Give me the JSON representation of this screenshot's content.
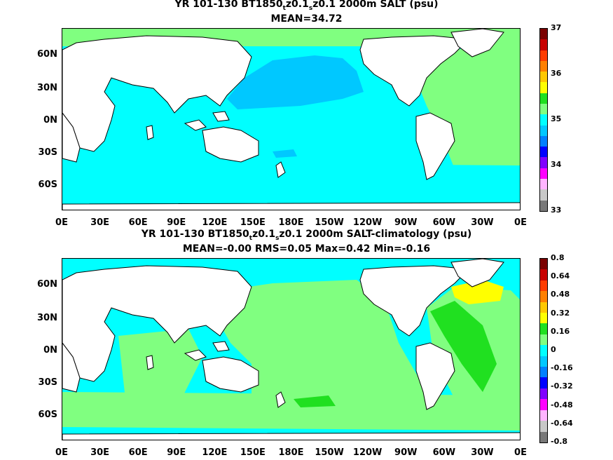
{
  "top": {
    "title_pre": "YR 101-130 BT1850",
    "title_sub1": "t",
    "title_mid": "z0.1",
    "title_sub2": "s",
    "title_post": "z0.1 2000m SALT (psu)",
    "stats": "MEAN=34.72",
    "colorbar": {
      "colors": [
        "#7a0000",
        "#c80000",
        "#ff3c00",
        "#ff8000",
        "#ffc800",
        "#ffff00",
        "#20e020",
        "#80ff80",
        "#00ffff",
        "#00c8ff",
        "#0080ff",
        "#0000ff",
        "#8000ff",
        "#ff00ff",
        "#ffb4ff",
        "#c8c8c8",
        "#787878"
      ],
      "labels": [
        "37",
        "36",
        "35",
        "34",
        "33"
      ]
    }
  },
  "bottom": {
    "title_pre": "YR 101-130 BT1850",
    "title_sub1": "t",
    "title_mid": "z0.1",
    "title_sub2": "s",
    "title_post": "z0.1 2000m SALT-climatology (psu)",
    "stats": "MEAN=-0.00   RMS=0.05   Max=0.42   Min=-0.16",
    "colorbar": {
      "colors": [
        "#7a0000",
        "#c80000",
        "#ff3c00",
        "#ff8000",
        "#ffc800",
        "#ffff00",
        "#20e020",
        "#80ff80",
        "#00ffff",
        "#00c8ff",
        "#0080ff",
        "#0000ff",
        "#8000ff",
        "#ff00ff",
        "#ffb4ff",
        "#c8c8c8",
        "#787878"
      ],
      "labels": [
        "0.8",
        "0.64",
        "0.48",
        "0.32",
        "0.16",
        "0",
        "-0.16",
        "-0.32",
        "-0.48",
        "-0.64",
        "-0.8"
      ]
    }
  },
  "axes": {
    "lat_labels": [
      "60N",
      "30N",
      "0N",
      "30S",
      "60S"
    ],
    "lon_labels": [
      "0E",
      "30E",
      "60E",
      "90E",
      "120E",
      "150E",
      "180E",
      "150W",
      "120W",
      "90W",
      "60W",
      "30W",
      "0E"
    ]
  },
  "colors": {
    "land": "#ffffff",
    "coast": "#000000",
    "top_base": "#00ffff",
    "top_pacific": "#00c8ff",
    "top_atlantic": "#80ff80",
    "bottom_base": "#80ff80",
    "bottom_green": "#20e020",
    "bottom_yellow": "#ffff00",
    "bottom_cyan": "#00ffff"
  }
}
